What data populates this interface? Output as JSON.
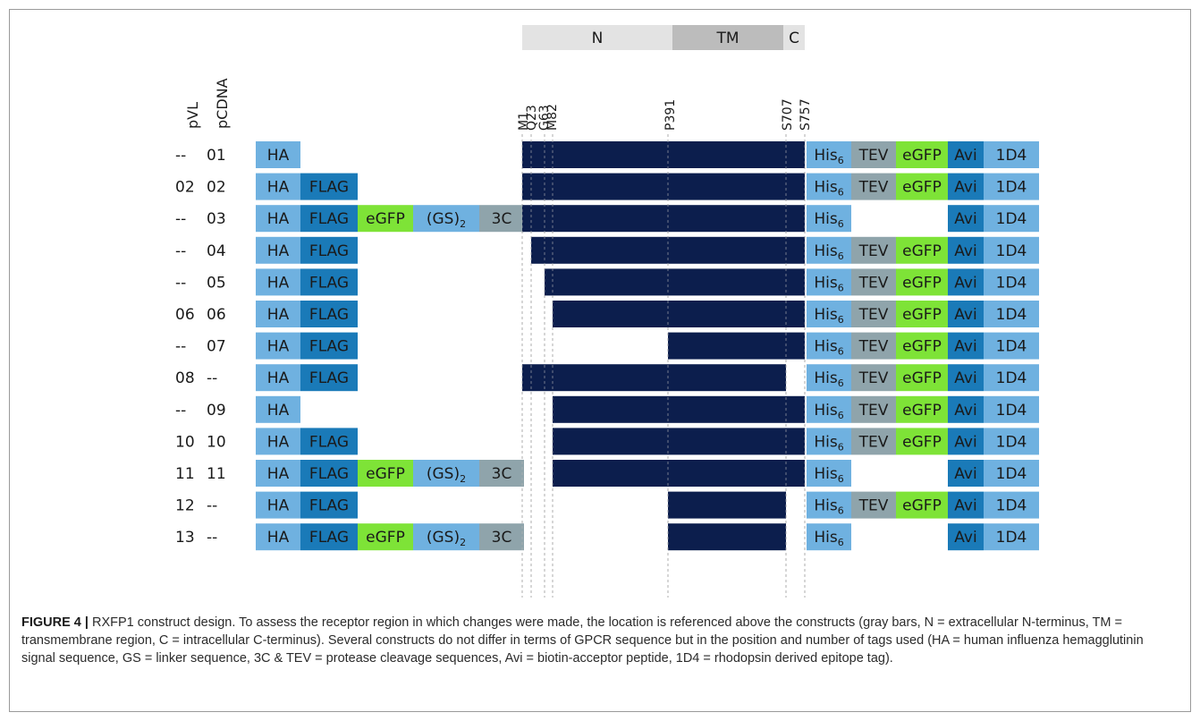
{
  "regions": [
    {
      "label": "N",
      "color": "#e3e3e3"
    },
    {
      "label": "TM",
      "color": "#bcbcbc"
    },
    {
      "label": "C",
      "color": "#e3e3e3"
    }
  ],
  "column_headers": [
    "pVL",
    "pCDNA"
  ],
  "residues": [
    "M1",
    "Q23",
    "G63",
    "M82",
    "P391",
    "S707",
    "S757"
  ],
  "tag_colors": {
    "HA": "#6fb1e0",
    "FLAG": "#1a7ab8",
    "eGFP": "#7ee337",
    "GS": "#6fb1e0",
    "3C": "#8fa4ab",
    "His": "#6fb1e0",
    "TEV": "#8fa4ab",
    "Avi": "#1a7ab8",
    "1D4": "#6fb1e0",
    "receptor": "#0c1e4d"
  },
  "tag_labels": {
    "HA": "HA",
    "FLAG": "FLAG",
    "eGFP": "eGFP",
    "GS": "(GS)",
    "GS_sub": "2",
    "3C": "3C",
    "His": "His",
    "His_sub": "6",
    "TEV": "TEV",
    "Avi": "Avi",
    "1D4": "1D4"
  },
  "constructs": [
    {
      "pvl": "--",
      "pcdna": "01",
      "n_tags": [
        "HA"
      ],
      "start": "M1",
      "end": "S757",
      "c_tags": [
        "His",
        "TEV",
        "eGFP",
        "Avi",
        "1D4"
      ]
    },
    {
      "pvl": "02",
      "pcdna": "02",
      "n_tags": [
        "HA",
        "FLAG"
      ],
      "start": "M1",
      "end": "S757",
      "c_tags": [
        "His",
        "TEV",
        "eGFP",
        "Avi",
        "1D4"
      ]
    },
    {
      "pvl": "--",
      "pcdna": "03",
      "n_tags": [
        "HA",
        "FLAG",
        "eGFP",
        "GS",
        "3C"
      ],
      "start": "M1",
      "end": "S757",
      "c_tags": [
        "His",
        "Avi",
        "1D4"
      ]
    },
    {
      "pvl": "--",
      "pcdna": "04",
      "n_tags": [
        "HA",
        "FLAG"
      ],
      "start": "Q23",
      "end": "S757",
      "c_tags": [
        "His",
        "TEV",
        "eGFP",
        "Avi",
        "1D4"
      ]
    },
    {
      "pvl": "--",
      "pcdna": "05",
      "n_tags": [
        "HA",
        "FLAG"
      ],
      "start": "G63",
      "end": "S757",
      "c_tags": [
        "His",
        "TEV",
        "eGFP",
        "Avi",
        "1D4"
      ]
    },
    {
      "pvl": "06",
      "pcdna": "06",
      "n_tags": [
        "HA",
        "FLAG"
      ],
      "start": "M82",
      "end": "S757",
      "c_tags": [
        "His",
        "TEV",
        "eGFP",
        "Avi",
        "1D4"
      ]
    },
    {
      "pvl": "--",
      "pcdna": "07",
      "n_tags": [
        "HA",
        "FLAG"
      ],
      "start": "P391",
      "end": "S757",
      "c_tags": [
        "His",
        "TEV",
        "eGFP",
        "Avi",
        "1D4"
      ]
    },
    {
      "pvl": "08",
      "pcdna": "--",
      "n_tags": [
        "HA",
        "FLAG"
      ],
      "start": "M1",
      "end": "S707",
      "c_tags": [
        "His",
        "TEV",
        "eGFP",
        "Avi",
        "1D4"
      ]
    },
    {
      "pvl": "--",
      "pcdna": "09",
      "n_tags": [
        "HA"
      ],
      "start": "M82",
      "end": "S757",
      "c_tags": [
        "His",
        "TEV",
        "eGFP",
        "Avi",
        "1D4"
      ]
    },
    {
      "pvl": "10",
      "pcdna": "10",
      "n_tags": [
        "HA",
        "FLAG"
      ],
      "start": "M82",
      "end": "S757",
      "c_tags": [
        "His",
        "TEV",
        "eGFP",
        "Avi",
        "1D4"
      ]
    },
    {
      "pvl": "11",
      "pcdna": "11",
      "n_tags": [
        "HA",
        "FLAG",
        "eGFP",
        "GS",
        "3C"
      ],
      "start": "M82",
      "end": "S757",
      "c_tags": [
        "His",
        "Avi",
        "1D4"
      ]
    },
    {
      "pvl": "12",
      "pcdna": "--",
      "n_tags": [
        "HA",
        "FLAG"
      ],
      "start": "P391",
      "end": "S707",
      "c_tags": [
        "His",
        "TEV",
        "eGFP",
        "Avi",
        "1D4"
      ]
    },
    {
      "pvl": "13",
      "pcdna": "--",
      "n_tags": [
        "HA",
        "FLAG",
        "eGFP",
        "GS",
        "3C"
      ],
      "start": "P391",
      "end": "S707",
      "c_tags": [
        "His",
        "Avi",
        "1D4"
      ]
    }
  ],
  "caption": {
    "label": "FIGURE 4 |",
    "text": " RXFP1 construct design. To assess the receptor region in which changes were made, the location is referenced above the constructs (gray bars, N = extracellular N-terminus, TM = transmembrane region, C = intracellular C-terminus). Several constructs do not differ in terms of GPCR sequence but in the position and number of tags used (HA = human influenza hemagglutinin signal sequence, GS = linker sequence, 3C & TEV = protease cleavage sequences, Avi = biotin-acceptor peptide, 1D4 = rhodopsin derived epitope tag)."
  }
}
